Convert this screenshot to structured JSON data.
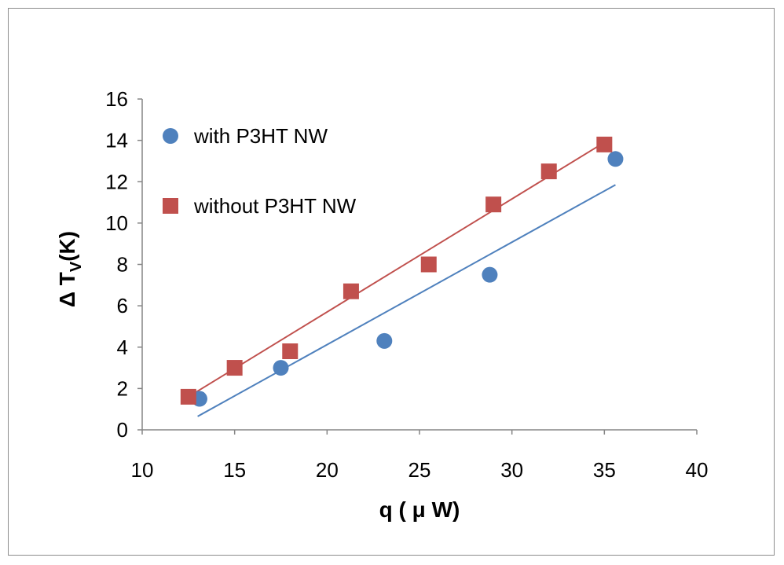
{
  "chart_data": {
    "type": "scatter",
    "title": "",
    "xlabel": "q ( μ W)",
    "ylabel": {
      "prefix": "Δ T",
      "subscript": "V",
      "suffix": "(K)"
    },
    "xlim": [
      10,
      40
    ],
    "ylim": [
      0,
      16
    ],
    "x_ticks": [
      10,
      15,
      20,
      25,
      30,
      35,
      40
    ],
    "y_ticks": [
      0,
      2,
      4,
      6,
      8,
      10,
      12,
      14,
      16
    ],
    "grid": false,
    "legend_position": "top-left",
    "series": [
      {
        "name": "with P3HT NW",
        "marker": "circle",
        "color": "#4F81BD",
        "x": [
          13.1,
          17.5,
          23.1,
          28.8,
          35.6
        ],
        "y": [
          1.5,
          3.0,
          4.3,
          7.5,
          13.1
        ],
        "fit_line": {
          "x": [
            13.0,
            35.6
          ],
          "y": [
            0.65,
            11.85
          ]
        }
      },
      {
        "name": "without P3HT NW",
        "marker": "square",
        "color": "#C0504D",
        "x": [
          12.5,
          15.0,
          18.0,
          21.3,
          25.5,
          29.0,
          32.0,
          35.0
        ],
        "y": [
          1.6,
          3.0,
          3.8,
          6.7,
          8.0,
          10.9,
          12.5,
          13.8
        ],
        "fit_line": {
          "x": [
            12.5,
            35.0
          ],
          "y": [
            1.6,
            13.9
          ]
        }
      }
    ]
  }
}
